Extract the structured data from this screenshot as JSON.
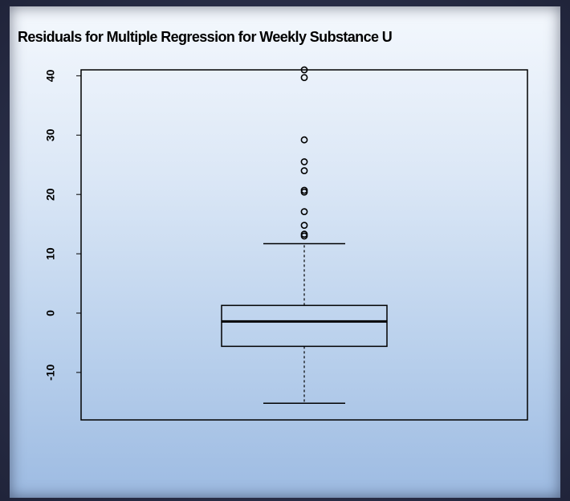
{
  "chart_data": {
    "type": "boxplot",
    "title": "Residuals for Multiple Regression for Weekly Substance U",
    "xlabel": "",
    "ylabel": "",
    "ylim": [
      -18,
      41
    ],
    "yticks": [
      -10,
      0,
      10,
      20,
      30,
      40
    ],
    "ytick_labels": [
      "-10",
      "0",
      "10",
      "20",
      "30",
      "40"
    ],
    "boxplot": {
      "min": -15.2,
      "q1": -5.6,
      "median": -1.4,
      "q3": 1.3,
      "whisker_high": 11.7,
      "outliers": [
        13.0,
        13.3,
        14.8,
        17.1,
        20.4,
        20.7,
        24.0,
        25.5,
        29.2,
        39.7,
        41.0
      ]
    },
    "grid": false
  }
}
